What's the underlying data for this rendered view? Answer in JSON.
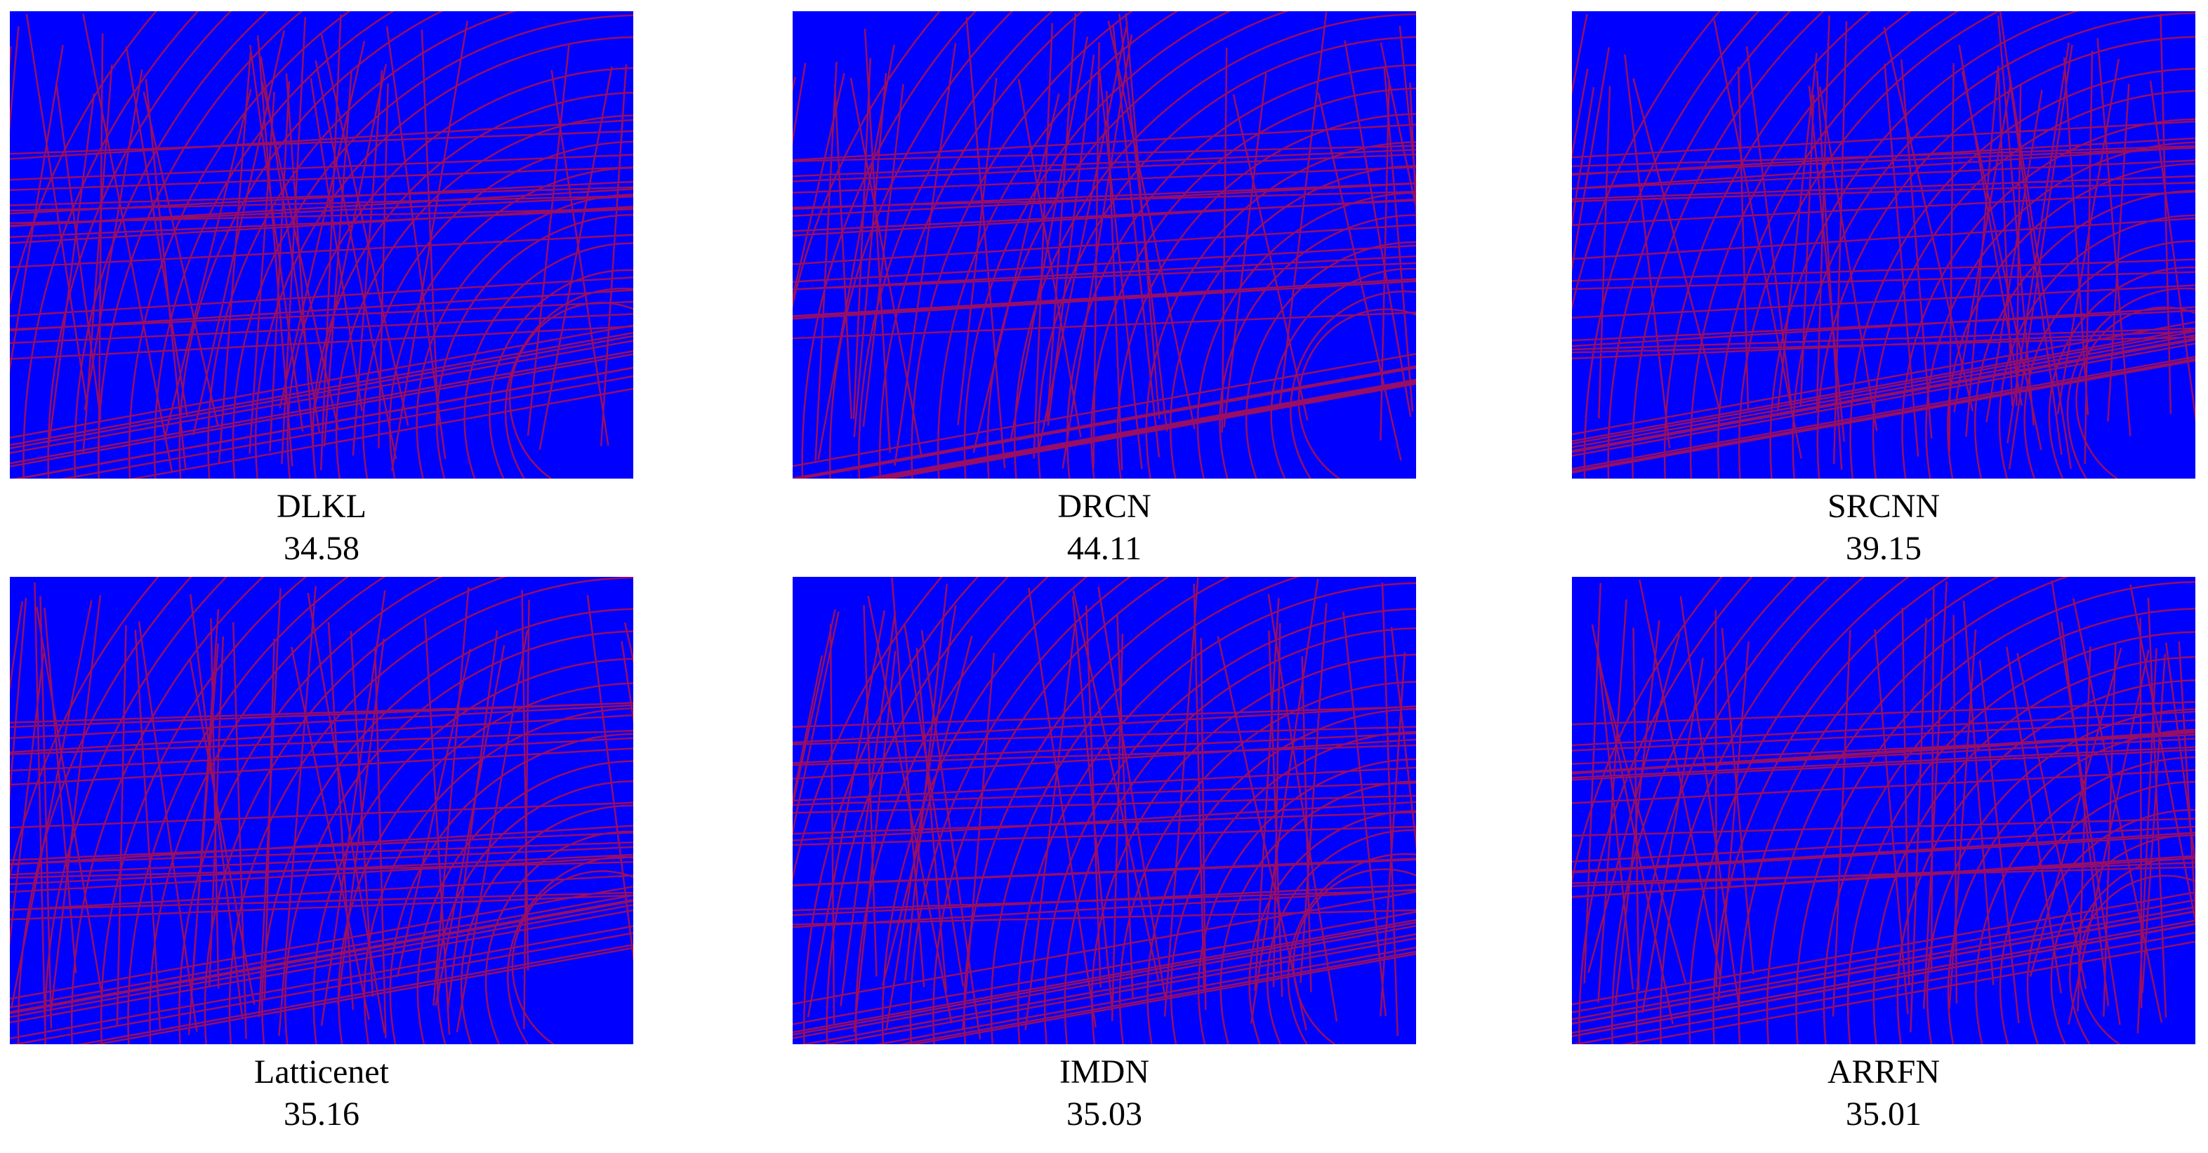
{
  "panels": [
    {
      "label": "DLKL",
      "score": "34.58"
    },
    {
      "label": "DRCN",
      "score": "44.11"
    },
    {
      "label": "SRCNN",
      "score": "39.15"
    },
    {
      "label": "Latticenet",
      "score": "35.16"
    },
    {
      "label": "IMDN",
      "score": "35.03"
    },
    {
      "label": "ARRFN",
      "score": "35.01"
    }
  ]
}
